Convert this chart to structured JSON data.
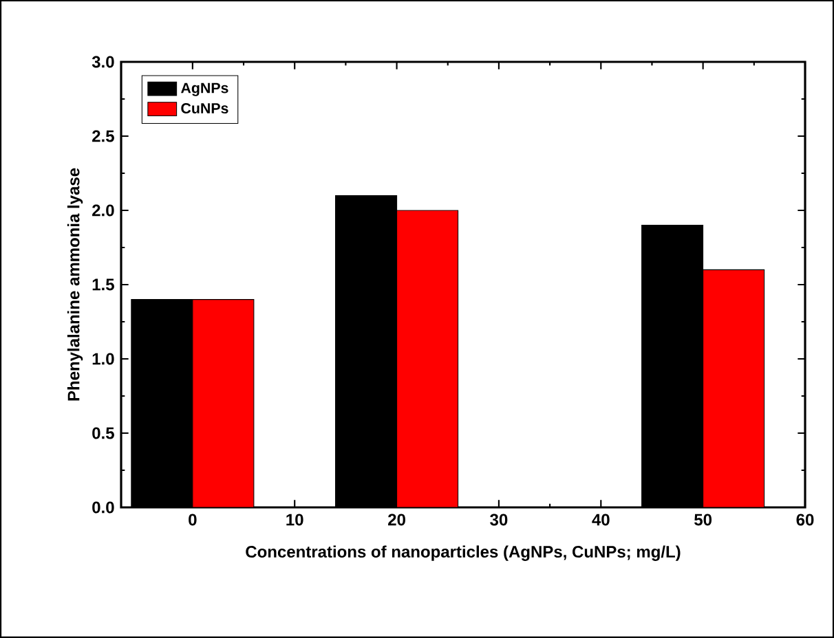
{
  "chart_data": {
    "type": "bar",
    "xlabel": "Concentrations of nanoparticles (AgNPs, CuNPs; mg/L)",
    "ylabel": "Phenylalanine ammonia lyase",
    "x": [
      0,
      20,
      50
    ],
    "series": [
      {
        "name": "AgNPs",
        "color": "#000000",
        "values": [
          1.4,
          2.1,
          1.9
        ]
      },
      {
        "name": "CuNPs",
        "color": "#ff0000",
        "values": [
          1.4,
          2.0,
          1.6
        ]
      }
    ],
    "xlim": [
      -7,
      60
    ],
    "xticks": [
      0,
      10,
      20,
      30,
      40,
      50,
      60
    ],
    "ylim": [
      0,
      3
    ],
    "yticks": [
      {
        "value": 0,
        "label": "0.0"
      },
      {
        "value": 0.5,
        "label": "0.5"
      },
      {
        "value": 1,
        "label": "1.0"
      },
      {
        "value": 1.5,
        "label": "1.5"
      },
      {
        "value": 2,
        "label": "2.0"
      },
      {
        "value": 2.5,
        "label": "2.5"
      },
      {
        "value": 3,
        "label": "3.0"
      }
    ],
    "legend": "top left",
    "grid": false
  }
}
